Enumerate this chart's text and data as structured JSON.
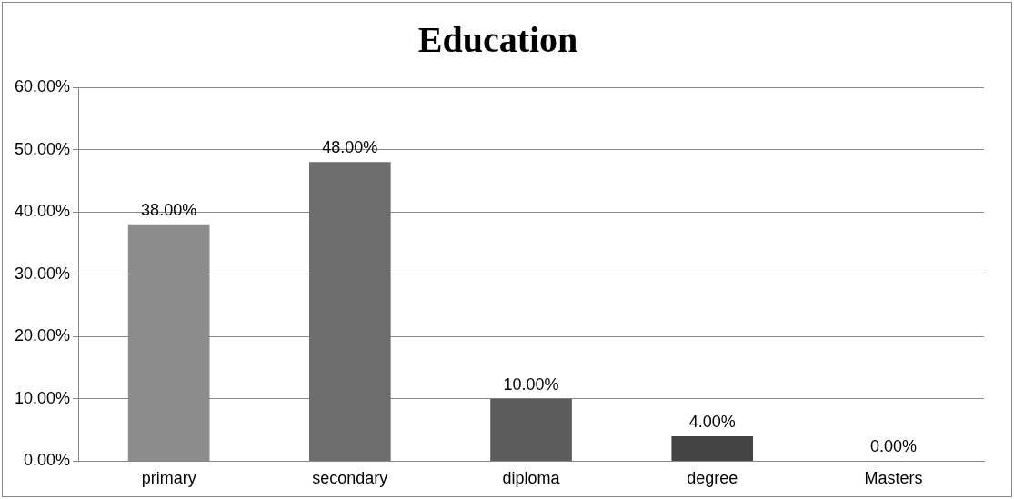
{
  "chart_data": {
    "type": "bar",
    "title": "Education",
    "categories": [
      "primary",
      "secondary",
      "diploma",
      "degree",
      "Masters"
    ],
    "values": [
      38,
      48,
      10,
      4,
      0
    ],
    "colors": [
      "#8c8c8c",
      "#6e6e6e",
      "#5c5c5c",
      "#444444",
      "#444444"
    ],
    "value_labels": [
      "38.00%",
      "48.00%",
      "10.00%",
      "4.00%",
      "0.00%"
    ],
    "ylim": [
      0,
      60
    ],
    "yticks": [
      {
        "value": 0,
        "label": "0.00%"
      },
      {
        "value": 10,
        "label": "10.00%"
      },
      {
        "value": 20,
        "label": "20.00%"
      },
      {
        "value": 30,
        "label": "30.00%"
      },
      {
        "value": 40,
        "label": "40.00%"
      },
      {
        "value": 50,
        "label": "50.00%"
      },
      {
        "value": 60,
        "label": "60.00%"
      }
    ],
    "grid": "y",
    "legend": false
  }
}
